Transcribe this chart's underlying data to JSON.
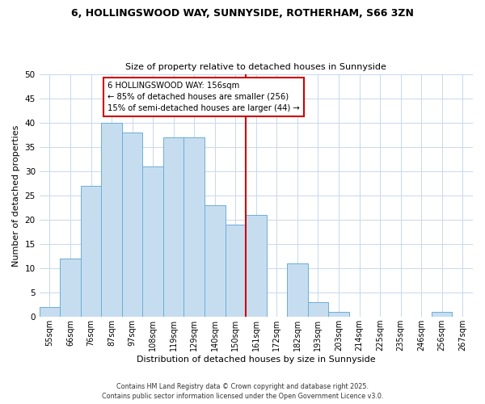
{
  "title": "6, HOLLINGSWOOD WAY, SUNNYSIDE, ROTHERHAM, S66 3ZN",
  "subtitle": "Size of property relative to detached houses in Sunnyside",
  "xlabel": "Distribution of detached houses by size in Sunnyside",
  "ylabel": "Number of detached properties",
  "bar_labels": [
    "55sqm",
    "66sqm",
    "76sqm",
    "87sqm",
    "97sqm",
    "108sqm",
    "119sqm",
    "129sqm",
    "140sqm",
    "150sqm",
    "161sqm",
    "172sqm",
    "182sqm",
    "193sqm",
    "203sqm",
    "214sqm",
    "225sqm",
    "235sqm",
    "246sqm",
    "256sqm",
    "267sqm"
  ],
  "bar_values": [
    2,
    12,
    27,
    40,
    38,
    31,
    37,
    37,
    23,
    19,
    21,
    0,
    11,
    3,
    1,
    0,
    0,
    0,
    0,
    1,
    0
  ],
  "bar_color": "#c6ddf0",
  "bar_edge_color": "#6baed6",
  "vline_x_index": 9.5,
  "vline_color": "#cc0000",
  "ylim": [
    0,
    50
  ],
  "yticks": [
    0,
    5,
    10,
    15,
    20,
    25,
    30,
    35,
    40,
    45,
    50
  ],
  "annotation_title": "6 HOLLINGSWOOD WAY: 156sqm",
  "annotation_line1": "← 85% of detached houses are smaller (256)",
  "annotation_line2": "15% of semi-detached houses are larger (44) →",
  "annotation_box_color": "#ffffff",
  "annotation_box_edge": "#cc0000",
  "footer_line1": "Contains HM Land Registry data © Crown copyright and database right 2025.",
  "footer_line2": "Contains public sector information licensed under the Open Government Licence v3.0.",
  "background_color": "#ffffff",
  "grid_color": "#c8d8ec"
}
